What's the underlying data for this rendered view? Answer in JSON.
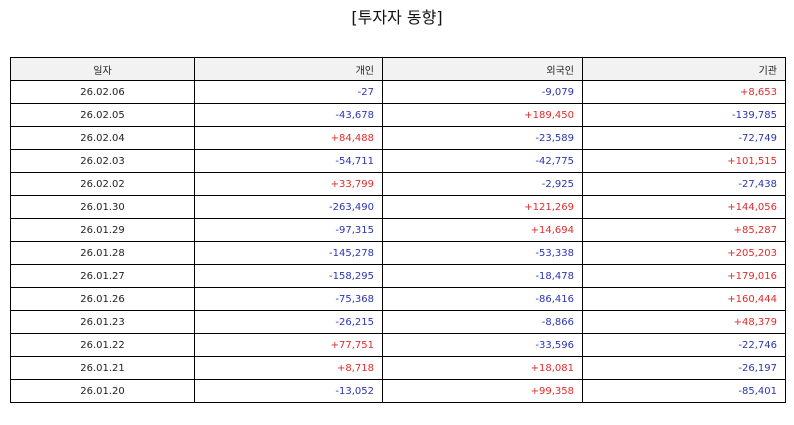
{
  "title": "[투자자 동향]",
  "table": {
    "headers": [
      "일자",
      "개인",
      "외국인",
      "기관"
    ],
    "rows": [
      {
        "date": "26.02.06",
        "individual": "-27",
        "foreign": "-9,079",
        "institution": "+8,653"
      },
      {
        "date": "26.02.05",
        "individual": "-43,678",
        "foreign": "+189,450",
        "institution": "-139,785"
      },
      {
        "date": "26.02.04",
        "individual": "+84,488",
        "foreign": "-23,589",
        "institution": "-72,749"
      },
      {
        "date": "26.02.03",
        "individual": "-54,711",
        "foreign": "-42,775",
        "institution": "+101,515"
      },
      {
        "date": "26.02.02",
        "individual": "+33,799",
        "foreign": "-2,925",
        "institution": "-27,438"
      },
      {
        "date": "26.01.30",
        "individual": "-263,490",
        "foreign": "+121,269",
        "institution": "+144,056"
      },
      {
        "date": "26.01.29",
        "individual": "-97,315",
        "foreign": "+14,694",
        "institution": "+85,287"
      },
      {
        "date": "26.01.28",
        "individual": "-145,278",
        "foreign": "-53,338",
        "institution": "+205,203"
      },
      {
        "date": "26.01.27",
        "individual": "-158,295",
        "foreign": "-18,478",
        "institution": "+179,016"
      },
      {
        "date": "26.01.26",
        "individual": "-75,368",
        "foreign": "-86,416",
        "institution": "+160,444"
      },
      {
        "date": "26.01.23",
        "individual": "-26,215",
        "foreign": "-8,866",
        "institution": "+48,379"
      },
      {
        "date": "26.01.22",
        "individual": "+77,751",
        "foreign": "-33,596",
        "institution": "-22,746"
      },
      {
        "date": "26.01.21",
        "individual": "+8,718",
        "foreign": "+18,081",
        "institution": "-26,197"
      },
      {
        "date": "26.01.20",
        "individual": "-13,052",
        "foreign": "+99,358",
        "institution": "-85,401"
      }
    ]
  },
  "colors": {
    "negative": "#2b35b3",
    "positive": "#e02b2b",
    "header_bg": "#f2f2f2",
    "border": "#000000"
  }
}
